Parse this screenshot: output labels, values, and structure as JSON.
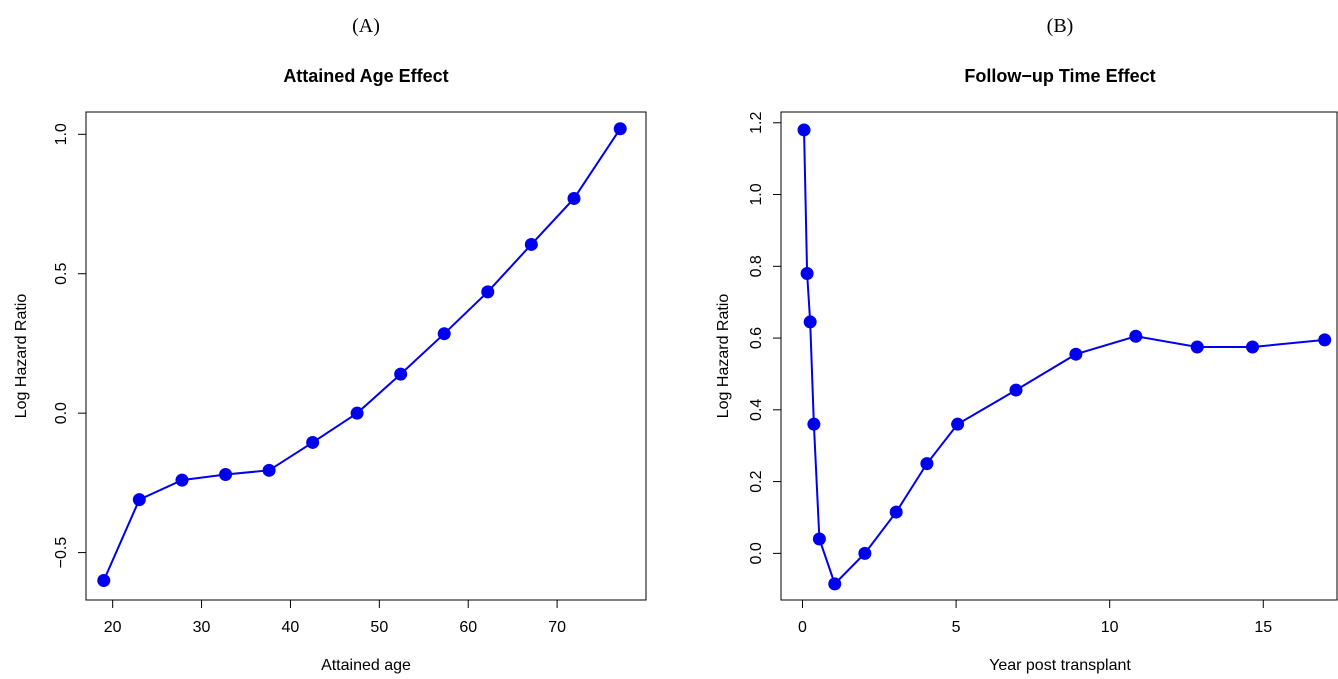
{
  "panel_labels": [
    "(A)",
    "(B)"
  ],
  "chart_data": [
    {
      "type": "line",
      "title": "Attained Age Effect",
      "xlabel": "Attained age",
      "ylabel": "Log Hazard Ratio",
      "xlim": [
        17,
        80
      ],
      "ylim": [
        -0.67,
        1.08
      ],
      "xticks": [
        20,
        30,
        40,
        50,
        60,
        70
      ],
      "yticks": [
        -0.5,
        0.0,
        0.5,
        1.0
      ],
      "ytick_labels": [
        "−0.5",
        "0.0",
        "0.5",
        "1.0"
      ],
      "grid": false,
      "series": [
        {
          "x": [
            19,
            23,
            27.8,
            32.7,
            37.6,
            42.5,
            47.5,
            52.4,
            57.3,
            62.2,
            67.1,
            71.9,
            77.1
          ],
          "y": [
            -0.6,
            -0.31,
            -0.24,
            -0.22,
            -0.205,
            -0.105,
            0.0,
            0.14,
            0.285,
            0.435,
            0.605,
            0.77,
            1.02
          ]
        }
      ],
      "color": "#0000ee"
    },
    {
      "type": "line",
      "title": "Follow−up Time Effect",
      "xlabel": "Year post transplant",
      "ylabel": "Log Hazard Ratio",
      "xlim": [
        -0.7,
        17.4
      ],
      "ylim": [
        -0.13,
        1.23
      ],
      "xticks": [
        0,
        5,
        10,
        15
      ],
      "yticks": [
        0.0,
        0.2,
        0.4,
        0.6,
        0.8,
        1.0,
        1.2
      ],
      "ytick_labels": [
        "0.0",
        "0.2",
        "0.4",
        "0.6",
        "0.8",
        "1.0",
        "1.2"
      ],
      "grid": false,
      "series": [
        {
          "x": [
            0.05,
            0.15,
            0.25,
            0.37,
            0.55,
            1.05,
            2.03,
            3.05,
            4.05,
            5.05,
            6.95,
            8.9,
            10.85,
            12.85,
            14.65,
            17.0
          ],
          "y": [
            1.18,
            0.78,
            0.645,
            0.36,
            0.04,
            -0.085,
            0.0,
            0.115,
            0.25,
            0.36,
            0.455,
            0.555,
            0.605,
            0.575,
            0.575,
            0.595
          ]
        }
      ],
      "color": "#0000ee"
    }
  ]
}
